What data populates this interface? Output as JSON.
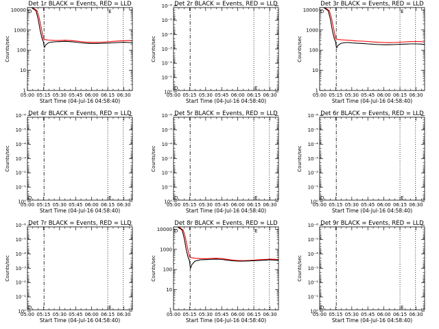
{
  "chart_data": {
    "type": "line",
    "colors": {
      "events": "#000000",
      "lld": "#ff0000"
    },
    "x_ticks": [
      "05:00",
      "05:15",
      "05:30",
      "05:45",
      "06:00",
      "06:15",
      "06:30"
    ],
    "x_range_minutes": [
      0,
      98
    ],
    "x_tick_minutes": [
      0,
      15,
      30,
      45,
      60,
      75,
      90
    ],
    "dashdot_line_minute": 15.5,
    "dotted_line_minutes": [
      75,
      89.5
    ],
    "xlabel": "Start Time (04-Jul-16 04:58:40)",
    "ylabel": "Counts/sec",
    "panels": [
      {
        "title": "Det 1r BLACK = Events, RED = LLD",
        "scale": "log",
        "ylim": [
          1,
          13000
        ],
        "y_ticks": [
          "1",
          "10",
          "100",
          "1000",
          "10000"
        ],
        "y_tick_values": [
          1,
          10,
          100,
          1000,
          10000
        ],
        "marker_left": "D",
        "marker_left_at": [
          0,
          10000
        ],
        "marker_right": "E",
        "marker_right_at": [
          75,
          10000
        ],
        "lld": {
          "x": [
            0,
            5,
            9,
            11,
            13,
            15,
            17,
            20,
            25,
            30,
            35,
            40,
            45,
            50,
            55,
            60,
            65,
            70,
            75,
            80,
            85,
            90,
            95,
            98
          ],
          "y": [
            13000,
            13000,
            9000,
            4000,
            1200,
            360,
            330,
            315,
            305,
            300,
            310,
            300,
            285,
            265,
            250,
            245,
            245,
            250,
            260,
            275,
            285,
            295,
            300,
            290
          ]
        },
        "events": {
          "x": [
            0,
            4,
            8,
            10,
            12,
            13.5,
            15,
            15.5,
            16,
            17,
            20,
            25,
            30,
            35,
            40,
            45,
            50,
            55,
            60,
            65,
            70,
            75,
            80,
            85,
            90,
            95,
            98
          ],
          "y": [
            13000,
            13000,
            9000,
            3500,
            900,
            400,
            250,
            160,
            140,
            180,
            240,
            260,
            265,
            275,
            265,
            250,
            230,
            220,
            215,
            215,
            220,
            225,
            230,
            240,
            245,
            240,
            235
          ]
        }
      },
      {
        "title": "Det 2r BLACK = Events, RED = LLD",
        "scale": "log",
        "ylim": [
          0.8,
          1.3e-06
        ],
        "y_ticks": [
          "10⁰",
          "10⁻¹",
          "10⁻²",
          "10⁻³",
          "10⁻⁴",
          "10⁻⁵",
          "10⁻⁶"
        ],
        "y_tick_values": [
          1,
          0.1,
          0.01,
          0.001,
          0.0001,
          1e-05,
          1e-06
        ],
        "marker_left": "D",
        "marker_left_at": [
          0,
          0.6
        ],
        "marker_right": "E",
        "marker_right_at": [
          75,
          0.6
        ]
      },
      {
        "title": "Det 3r BLACK = Events, RED = LLD",
        "scale": "log",
        "ylim": [
          1,
          13000
        ],
        "y_ticks": [
          "1",
          "10",
          "100",
          "1000",
          "10000"
        ],
        "y_tick_values": [
          1,
          10,
          100,
          1000,
          10000
        ],
        "marker_left": "D",
        "marker_left_at": [
          0,
          10000
        ],
        "marker_right": "E",
        "marker_right_at": [
          75,
          10000
        ],
        "lld": {
          "x": [
            0,
            5,
            9,
            11,
            13,
            15,
            17,
            20,
            25,
            30,
            35,
            40,
            45,
            50,
            55,
            60,
            65,
            70,
            75,
            80,
            85,
            90,
            95,
            98
          ],
          "y": [
            13000,
            13000,
            9000,
            4000,
            1200,
            370,
            340,
            325,
            315,
            300,
            285,
            280,
            270,
            255,
            245,
            240,
            235,
            240,
            250,
            260,
            265,
            270,
            265,
            250
          ]
        },
        "events": {
          "x": [
            0,
            4,
            8,
            10,
            12,
            13.5,
            15,
            15.5,
            16,
            17,
            20,
            25,
            30,
            35,
            40,
            45,
            50,
            55,
            60,
            65,
            70,
            75,
            80,
            85,
            90,
            95,
            98
          ],
          "y": [
            13000,
            13000,
            9000,
            3500,
            900,
            400,
            250,
            150,
            130,
            170,
            220,
            240,
            230,
            220,
            215,
            205,
            195,
            190,
            185,
            185,
            190,
            195,
            200,
            205,
            205,
            200,
            190
          ]
        }
      },
      {
        "title": "Det 4r BLACK = Events, RED = LLD",
        "scale": "log",
        "ylim": [
          0.8,
          1.3e-06
        ],
        "y_ticks": [
          "10⁰",
          "10⁻¹",
          "10⁻²",
          "10⁻³",
          "10⁻⁴",
          "10⁻⁵",
          "10⁻⁶"
        ],
        "y_tick_values": [
          1,
          0.1,
          0.01,
          0.001,
          0.0001,
          1e-05,
          1e-06
        ],
        "marker_left": "D",
        "marker_left_at": [
          0,
          1
        ],
        "marker_right": "E",
        "marker_right_at": [
          75,
          1
        ]
      },
      {
        "title": "Det 5r BLACK = Events, RED = LLD",
        "scale": "log",
        "ylim": [
          0.8,
          1.3e-06
        ],
        "y_ticks": [
          "10⁰",
          "10⁻¹",
          "10⁻²",
          "10⁻³",
          "10⁻⁴",
          "10⁻⁵",
          "10⁻⁶"
        ],
        "y_tick_values": [
          1,
          0.1,
          0.01,
          0.001,
          0.0001,
          1e-05,
          1e-06
        ],
        "marker_left": "D",
        "marker_left_at": [
          0,
          1
        ],
        "marker_right": "E",
        "marker_right_at": [
          75,
          1
        ]
      },
      {
        "title": "Det 6r BLACK = Events, RED = LLD",
        "scale": "log",
        "ylim": [
          0.8,
          1.3e-06
        ],
        "y_ticks": [
          "10⁰",
          "10⁻¹",
          "10⁻²",
          "10⁻³",
          "10⁻⁴",
          "10⁻⁵",
          "10⁻⁶"
        ],
        "y_tick_values": [
          1,
          0.1,
          0.01,
          0.001,
          0.0001,
          1e-05,
          1e-06
        ],
        "marker_left": "D",
        "marker_left_at": [
          0,
          1
        ],
        "marker_right": "E",
        "marker_right_at": [
          75,
          1
        ]
      },
      {
        "title": "Det 7r BLACK = Events, RED = LLD",
        "scale": "log",
        "ylim": [
          0.8,
          1.3e-06
        ],
        "y_ticks": [
          "10⁰",
          "10⁻¹",
          "10⁻²",
          "10⁻³",
          "10⁻⁴",
          "10⁻⁵",
          "10⁻⁶"
        ],
        "y_tick_values": [
          1,
          0.1,
          0.01,
          0.001,
          0.0001,
          1e-05,
          1e-06
        ],
        "marker_left": "D",
        "marker_left_at": [
          0,
          0.6
        ],
        "marker_right": "E",
        "marker_right_at": [
          75,
          0.6
        ]
      },
      {
        "title": "Det 8r BLACK = Events, RED = LLD",
        "scale": "log",
        "ylim": [
          1,
          13000
        ],
        "y_ticks": [
          "1",
          "10",
          "100",
          "1000",
          "10000"
        ],
        "y_tick_values": [
          1,
          10,
          100,
          1000,
          10000
        ],
        "marker_left": "D",
        "marker_left_at": [
          0,
          10000
        ],
        "marker_right": "E",
        "marker_right_at": [
          75,
          10000
        ],
        "lld": {
          "x": [
            0,
            5,
            9,
            11,
            13,
            15,
            17,
            20,
            25,
            30,
            35,
            40,
            45,
            50,
            55,
            60,
            65,
            70,
            75,
            80,
            85,
            90,
            95,
            98
          ],
          "y": [
            13000,
            13000,
            9000,
            4000,
            1200,
            420,
            380,
            360,
            350,
            345,
            355,
            360,
            350,
            320,
            295,
            280,
            275,
            280,
            290,
            305,
            315,
            325,
            320,
            310
          ]
        },
        "events": {
          "x": [
            0,
            4,
            8,
            10,
            12,
            13.5,
            15,
            15.5,
            16,
            17,
            20,
            25,
            30,
            35,
            40,
            45,
            50,
            55,
            60,
            65,
            70,
            75,
            80,
            85,
            90,
            95,
            98
          ],
          "y": [
            13000,
            13000,
            9000,
            3500,
            900,
            420,
            260,
            140,
            120,
            170,
            260,
            300,
            310,
            320,
            325,
            315,
            290,
            270,
            260,
            260,
            265,
            275,
            280,
            290,
            300,
            290,
            280
          ]
        }
      },
      {
        "title": "Det 9r BLACK = Events, RED = LLD",
        "scale": "log",
        "ylim": [
          0.8,
          1.3e-06
        ],
        "y_ticks": [
          "10⁰",
          "10⁻¹",
          "10⁻²",
          "10⁻³",
          "10⁻⁴",
          "10⁻⁵",
          "10⁻⁶"
        ],
        "y_tick_values": [
          1,
          0.1,
          0.01,
          0.001,
          0.0001,
          1e-05,
          1e-06
        ],
        "marker_left": "D",
        "marker_left_at": [
          0,
          0.6
        ],
        "marker_right": "E",
        "marker_right_at": [
          75,
          0.6
        ]
      }
    ]
  }
}
